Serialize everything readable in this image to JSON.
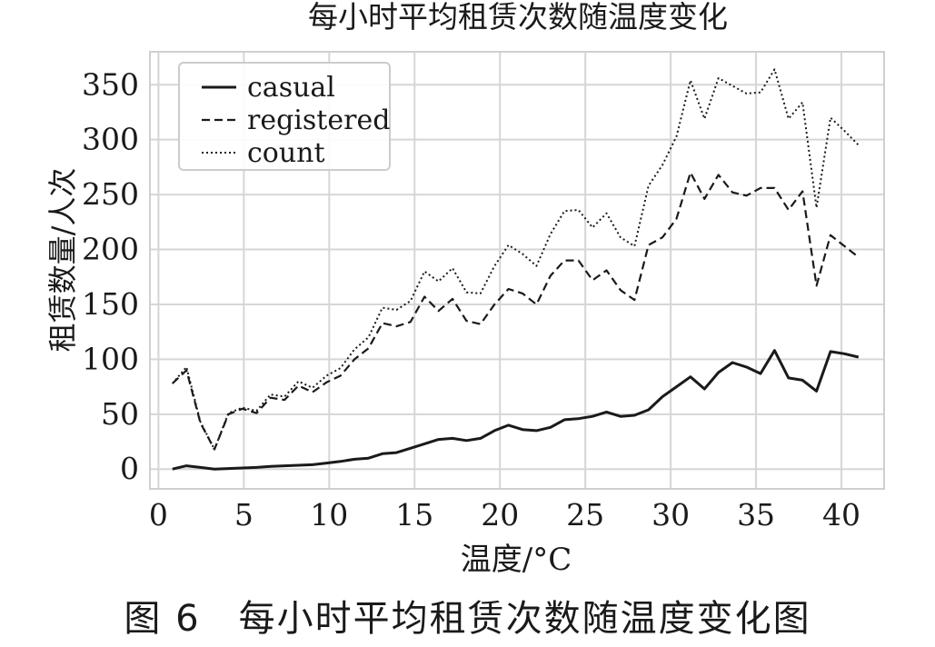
{
  "figure": {
    "caption": "图 6　每小时平均租赁次数随温度变化图"
  },
  "chart_data": {
    "type": "line",
    "title": "每小时平均租赁次数随温度变化",
    "xlabel": "温度/°C",
    "ylabel": "租赁数量/人次",
    "xlim": [
      -0.5,
      42.5
    ],
    "ylim": [
      -18,
      380
    ],
    "xticks": [
      0,
      5,
      10,
      15,
      20,
      25,
      30,
      35,
      40
    ],
    "yticks": [
      0,
      50,
      100,
      150,
      200,
      250,
      300,
      350
    ],
    "grid": true,
    "legend": "top-left",
    "series": [
      {
        "name": "casual",
        "style": "solid",
        "x": [
          0.82,
          1.64,
          2.46,
          3.28,
          4.1,
          4.92,
          5.74,
          6.56,
          7.38,
          8.2,
          9.02,
          9.84,
          10.66,
          11.48,
          12.3,
          13.12,
          13.94,
          14.76,
          15.58,
          16.4,
          17.22,
          18.04,
          18.86,
          19.68,
          20.5,
          21.32,
          22.14,
          22.96,
          23.78,
          24.6,
          25.42,
          26.24,
          27.06,
          27.88,
          28.7,
          29.52,
          30.34,
          31.16,
          31.98,
          32.8,
          33.62,
          34.44,
          35.26,
          36.08,
          36.9,
          37.72,
          38.54,
          39.36,
          40.18,
          41.0
        ],
        "values": [
          0,
          3,
          1.5,
          0,
          0.5,
          1,
          1.5,
          2.5,
          3,
          3.5,
          4,
          5.5,
          7,
          9,
          10,
          14,
          15,
          19,
          23,
          27,
          28,
          26,
          28,
          35,
          40,
          36,
          35,
          38,
          45,
          46,
          48,
          52,
          48,
          49,
          54,
          66,
          75,
          84,
          73,
          88,
          97,
          93,
          87,
          108,
          83,
          81,
          71,
          107,
          105,
          102
        ]
      },
      {
        "name": "registered",
        "style": "dashed",
        "x": [
          0.82,
          1.64,
          2.46,
          3.28,
          4.1,
          4.92,
          5.74,
          6.56,
          7.38,
          8.2,
          9.02,
          9.84,
          10.66,
          11.48,
          12.3,
          13.12,
          13.94,
          14.76,
          15.58,
          16.4,
          17.22,
          18.04,
          18.86,
          19.68,
          20.5,
          21.32,
          22.14,
          22.96,
          23.78,
          24.6,
          25.42,
          26.24,
          27.06,
          27.88,
          28.7,
          29.52,
          30.34,
          31.16,
          31.98,
          32.8,
          33.62,
          34.44,
          35.26,
          36.08,
          36.9,
          37.72,
          38.54,
          39.36,
          40.18,
          41.0
        ],
        "values": [
          78,
          90,
          42,
          18,
          50,
          55,
          51,
          65,
          63,
          76,
          70,
          79,
          85,
          100,
          110,
          133,
          130,
          134,
          157,
          144,
          155,
          135,
          132,
          150,
          164,
          160,
          150,
          176,
          190,
          190,
          172,
          181,
          163,
          154,
          204,
          211,
          228,
          270,
          246,
          268,
          252,
          249,
          256,
          256,
          236,
          253,
          167,
          213,
          203,
          193
        ]
      },
      {
        "name": "count",
        "style": "dotted",
        "x": [
          0.82,
          1.64,
          2.46,
          3.28,
          4.1,
          4.92,
          5.74,
          6.56,
          7.38,
          8.2,
          9.02,
          9.84,
          10.66,
          11.48,
          12.3,
          13.12,
          13.94,
          14.76,
          15.58,
          16.4,
          17.22,
          18.04,
          18.86,
          19.68,
          20.5,
          21.32,
          22.14,
          22.96,
          23.78,
          24.6,
          25.42,
          26.24,
          27.06,
          27.88,
          28.7,
          29.52,
          30.34,
          31.16,
          31.98,
          32.8,
          33.62,
          34.44,
          35.26,
          36.08,
          36.9,
          37.72,
          38.54,
          39.36,
          40.18,
          41.0
        ],
        "values": [
          78,
          93,
          43,
          18,
          51,
          56,
          53,
          68,
          66,
          80,
          74,
          85,
          92,
          109,
          120,
          147,
          145,
          153,
          180,
          171,
          183,
          161,
          160,
          185,
          204,
          196,
          185,
          214,
          235,
          236,
          220,
          233,
          211,
          203,
          258,
          277,
          303,
          354,
          319,
          356,
          349,
          342,
          343,
          364,
          319,
          334,
          238,
          320,
          308,
          295
        ]
      }
    ]
  }
}
